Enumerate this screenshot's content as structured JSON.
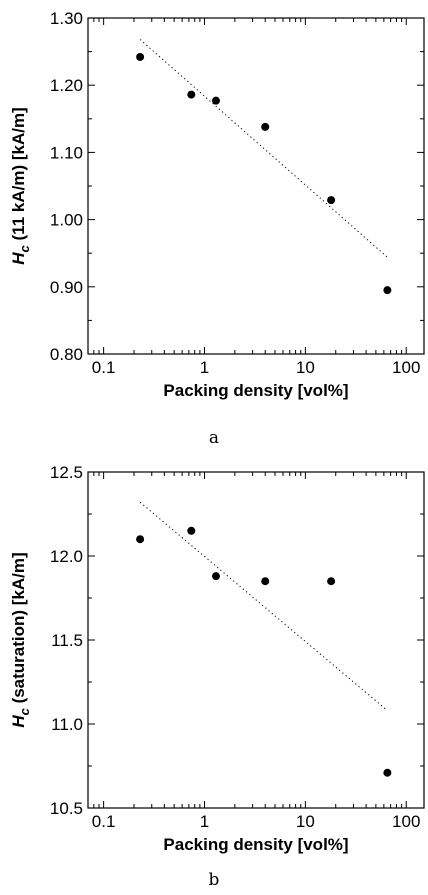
{
  "chart_data": [
    {
      "type": "scatter",
      "panel_label": "a",
      "xlabel": "Packing density [vol%]",
      "ylabel": {
        "symbol": "H",
        "subscript": "c",
        "rest": " (11 kA/m) [kA/m]"
      },
      "x_scale": "log",
      "xlim": [
        0.07,
        150
      ],
      "ylim": [
        0.8,
        1.3
      ],
      "x_ticks": [
        0.1,
        1,
        10,
        100
      ],
      "x_tick_labels": [
        "0.1",
        "1",
        "10",
        "100"
      ],
      "y_ticks": [
        0.8,
        0.9,
        1.0,
        1.1,
        1.2,
        1.3
      ],
      "y_tick_labels": [
        "0.80",
        "0.90",
        "1.00",
        "1.10",
        "1.20",
        "1.30"
      ],
      "grid": false,
      "points": {
        "x": [
          0.23,
          0.74,
          1.3,
          4.0,
          18.0,
          65.0
        ],
        "y": [
          1.242,
          1.186,
          1.177,
          1.138,
          1.029,
          0.895
        ]
      },
      "fit_line": {
        "x": [
          0.23,
          65.0
        ],
        "y": [
          1.268,
          0.944
        ]
      }
    },
    {
      "type": "scatter",
      "panel_label": "b",
      "xlabel": "Packing density [vol%]",
      "ylabel": {
        "symbol": "H",
        "subscript": "c",
        "rest": " (saturation) [kA/m]"
      },
      "x_scale": "log",
      "xlim": [
        0.07,
        150
      ],
      "ylim": [
        10.5,
        12.5
      ],
      "x_ticks": [
        0.1,
        1,
        10,
        100
      ],
      "x_tick_labels": [
        "0.1",
        "1",
        "10",
        "100"
      ],
      "y_ticks": [
        10.5,
        11.0,
        11.5,
        12.0,
        12.5
      ],
      "y_tick_labels": [
        "10.5",
        "11.0",
        "11.5",
        "12.0",
        "12.5"
      ],
      "grid": false,
      "points": {
        "x": [
          0.23,
          0.74,
          1.3,
          4.0,
          18.0,
          65.0
        ],
        "y": [
          12.1,
          12.15,
          11.88,
          11.85,
          11.85,
          10.71
        ]
      },
      "fit_line": {
        "x": [
          0.23,
          65.0
        ],
        "y": [
          12.32,
          11.08
        ]
      }
    }
  ]
}
